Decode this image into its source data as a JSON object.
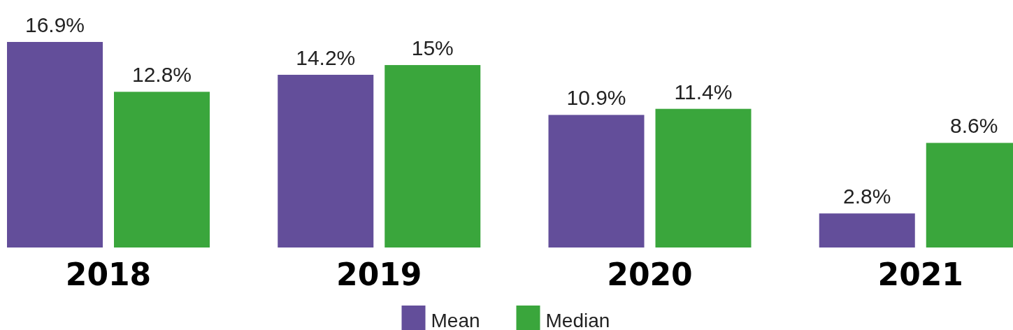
{
  "chart_data": {
    "type": "bar",
    "categories": [
      "2018",
      "2019",
      "2020",
      "2021"
    ],
    "series": [
      {
        "name": "Mean",
        "color": "#634e9a",
        "values": [
          16.9,
          14.2,
          10.9,
          2.8
        ],
        "value_labels": [
          "16.9%",
          "14.2%",
          "10.9%",
          "2.8%"
        ]
      },
      {
        "name": "Median",
        "color": "#3aa63c",
        "values": [
          12.8,
          15,
          11.4,
          8.6
        ],
        "value_labels": [
          "12.8%",
          "15%",
          "11.4%",
          "8.6%"
        ]
      }
    ],
    "legend": "bottom"
  }
}
